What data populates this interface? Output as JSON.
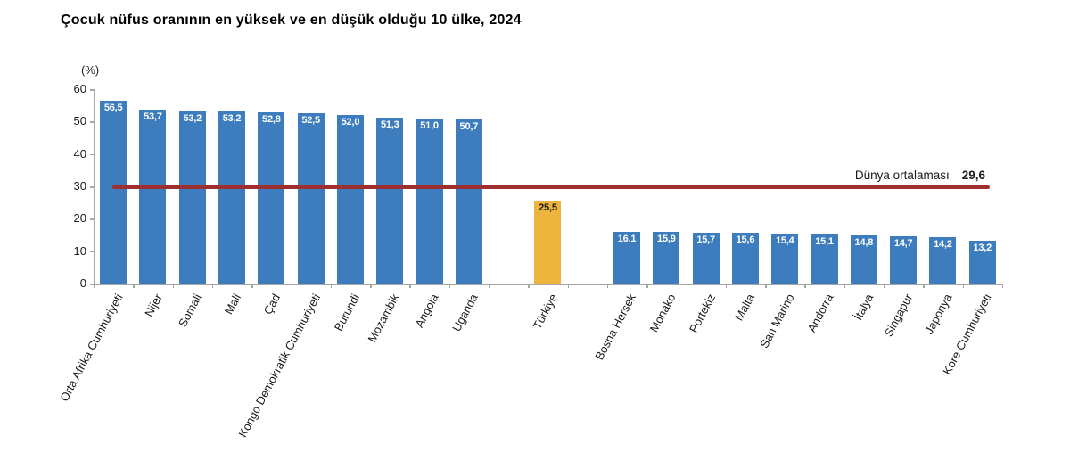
{
  "title": "Çocuk nüfus oranının en yüksek ve en düşük olduğu 10 ülke, 2024",
  "chart_data": {
    "type": "bar",
    "unit_label": "(%)",
    "ylabel": "(%)",
    "xlabel": "",
    "ylim": [
      0,
      60
    ],
    "yticks": [
      0,
      10,
      20,
      30,
      40,
      50,
      60
    ],
    "grid": false,
    "decimal_separator": ",",
    "bar_color_default": "#3e7dbd",
    "bar_label_color_default": "#ffffff",
    "groups": [
      {
        "name": "highest-10-countries",
        "color": "#3e7dbd",
        "label_color": "#ffffff",
        "categories": [
          "Orta Afrika Cumhuriyeti",
          "Nijer",
          "Somali",
          "Mali",
          "Çad",
          "Kongo Demokratik Cumhuriyeti",
          "Burundi",
          "Mozambik",
          "Angola",
          "Uganda"
        ],
        "values": [
          56.5,
          53.7,
          53.2,
          53.2,
          52.8,
          52.5,
          52.0,
          51.3,
          51.0,
          50.7
        ]
      },
      {
        "name": "turkiye",
        "color": "#edb53d",
        "label_color": "#1a1a1a",
        "categories": [
          "Türkiye"
        ],
        "values": [
          25.5
        ]
      },
      {
        "name": "lowest-10-countries",
        "color": "#3e7dbd",
        "label_color": "#ffffff",
        "categories": [
          "Bosna Hersek",
          "Monako",
          "Portekiz",
          "Malta",
          "San Marino",
          "Andorra",
          "İtalya",
          "Singapur",
          "Japonya",
          "Kore Cumhuriyeti"
        ],
        "values": [
          16.1,
          15.9,
          15.7,
          15.6,
          15.4,
          15.1,
          14.8,
          14.7,
          14.2,
          13.2
        ]
      }
    ],
    "reference_line": {
      "label": "Dünya ortalaması",
      "value": 29.6,
      "value_display": "29,6",
      "color": "#9e2f2f"
    }
  }
}
